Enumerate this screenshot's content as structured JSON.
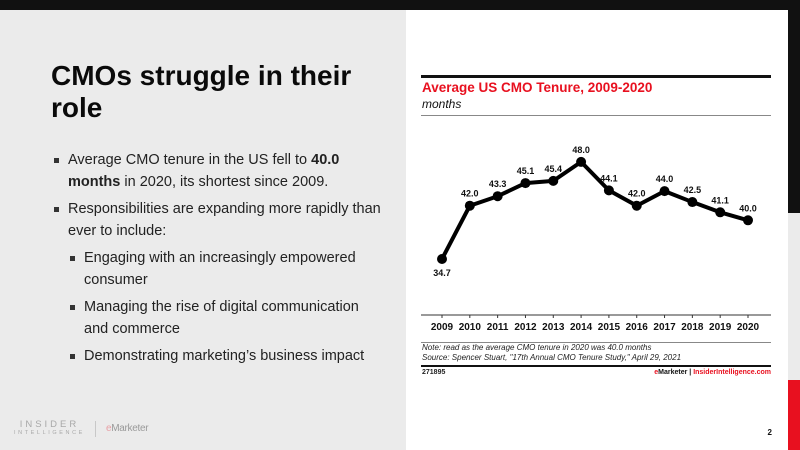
{
  "slide": {
    "title": "CMOs struggle in their role",
    "page_number": "2",
    "bullets": [
      {
        "pre": "Average CMO tenure in the US fell to ",
        "bold": "40.0 months",
        "post": " in 2020, its shortest since 2009."
      },
      {
        "text": "Responsibilities are expanding more rapidly than ever to include:",
        "sub": [
          "Engaging with an increasingly empowered consumer",
          "Managing the rise of digital communication and commerce",
          "Demonstrating marketing’s business impact"
        ]
      }
    ],
    "logo": {
      "line1": "INSIDER",
      "line2": "INTELLIGENCE",
      "em_e": "e",
      "em_rest": "Marketer"
    }
  },
  "colors": {
    "accent_red": "#e8101f",
    "dark": "#111111",
    "background": "#ebebeb"
  },
  "chart_data": {
    "type": "line",
    "title": "Average US CMO Tenure, 2009-2020",
    "subtitle": "months",
    "xlabel": "",
    "ylabel": "months",
    "categories": [
      "2009",
      "2010",
      "2011",
      "2012",
      "2013",
      "2014",
      "2015",
      "2016",
      "2017",
      "2018",
      "2019",
      "2020"
    ],
    "series": [
      {
        "name": "Average US CMO Tenure",
        "values": [
          34.7,
          42.0,
          43.3,
          45.1,
          45.4,
          48.0,
          44.1,
          42.0,
          44.0,
          42.5,
          41.1,
          40.0
        ],
        "labels": [
          "34.7",
          "42.0",
          "43.3",
          "45.1",
          "45.4",
          "48.0",
          "44.1",
          "42.0",
          "44.0",
          "42.5",
          "41.1",
          "40.0"
        ]
      }
    ],
    "ylim": [
      30,
      52
    ],
    "grid": false,
    "legend": "none",
    "note": "Note: read as the average CMO tenure in 2020 was 40.0 months",
    "source": "Source: Spencer Stuart, \"17th Annual CMO Tenure Study,\" April 29, 2021",
    "chart_id": "271895",
    "brand_e": "eMarketer",
    "brand_sep": " | ",
    "brand_site": "InsiderIntelligence.com"
  }
}
